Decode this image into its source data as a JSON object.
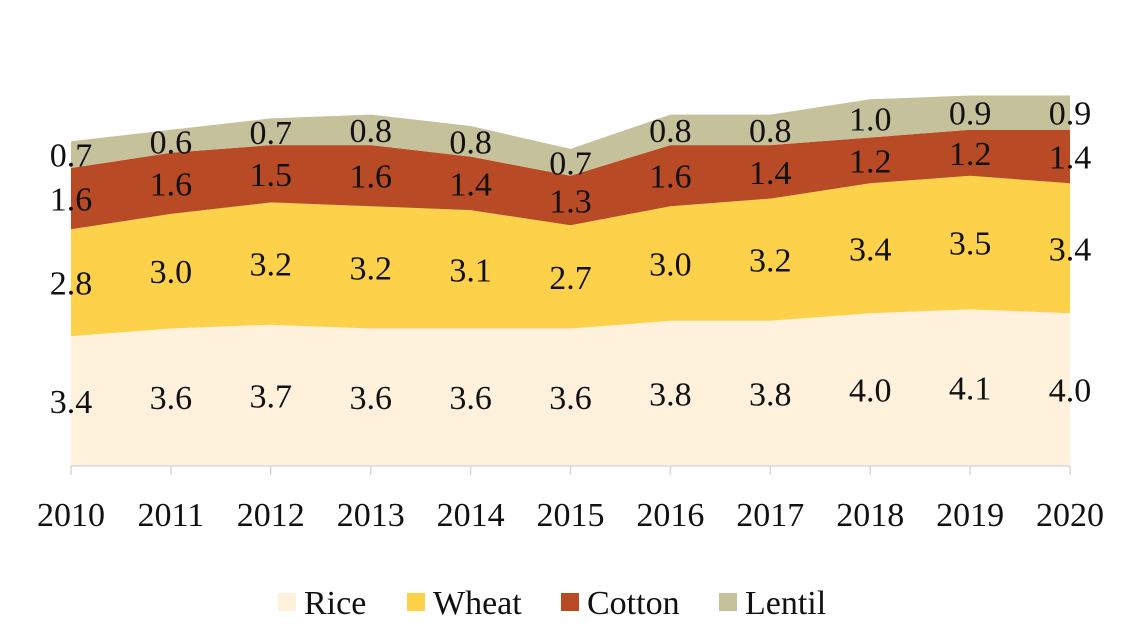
{
  "chart_data": {
    "type": "area",
    "stacked": true,
    "categories": [
      "2010",
      "2011",
      "2012",
      "2013",
      "2014",
      "2015",
      "2016",
      "2017",
      "2018",
      "2019",
      "2020"
    ],
    "series": [
      {
        "name": "Rice",
        "color": "#fff1db",
        "values": [
          3.4,
          3.6,
          3.7,
          3.6,
          3.6,
          3.6,
          3.8,
          3.8,
          4.0,
          4.1,
          4.0
        ]
      },
      {
        "name": "Wheat",
        "color": "#fed14a",
        "values": [
          2.8,
          3.0,
          3.2,
          3.2,
          3.1,
          2.7,
          3.0,
          3.2,
          3.4,
          3.5,
          3.4
        ]
      },
      {
        "name": "Cotton",
        "color": "#b84a25",
        "values": [
          1.6,
          1.6,
          1.5,
          1.6,
          1.4,
          1.3,
          1.6,
          1.4,
          1.2,
          1.2,
          1.4
        ]
      },
      {
        "name": "Lentil",
        "color": "#c5c19a",
        "values": [
          0.7,
          0.6,
          0.7,
          0.8,
          0.8,
          0.7,
          0.8,
          0.8,
          1.0,
          0.9,
          0.9
        ]
      }
    ],
    "value_labels": [
      [
        "3.4",
        "3.6",
        "3.7",
        "3.6",
        "3.6",
        "3.6",
        "3.8",
        "3.8",
        "4.0",
        "4.1",
        "4.0"
      ],
      [
        "2.8",
        "3.0",
        "3.2",
        "3.2",
        "3.1",
        "2.7",
        "3.0",
        "3.2",
        "3.4",
        "3.5",
        "3.4"
      ],
      [
        "1.6",
        "1.6",
        "1.5",
        "1.6",
        "1.4",
        "1.3",
        "1.6",
        "1.4",
        "1.2",
        "1.2",
        "1.4"
      ],
      [
        "0.7",
        "0.6",
        "0.7",
        "0.8",
        "0.8",
        "0.7",
        "0.8",
        "0.8",
        "1.0",
        "0.9",
        "0.9"
      ]
    ],
    "ylim": [
      0,
      10
    ],
    "grid": false,
    "legend": "bottom",
    "title": "",
    "xlabel": "",
    "ylabel": "",
    "axis_color": "#d9d9d9"
  }
}
